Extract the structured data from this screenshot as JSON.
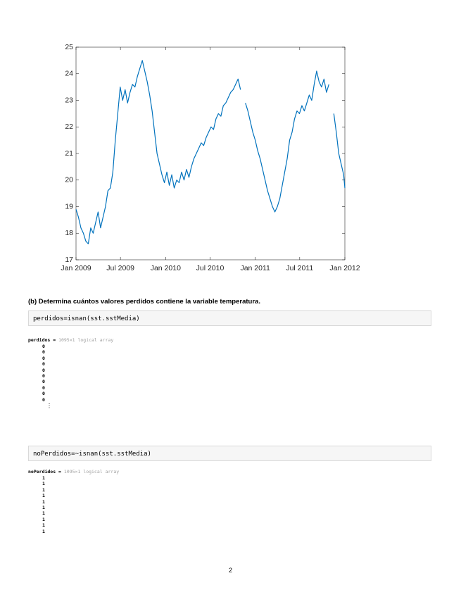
{
  "chart_data": {
    "type": "line",
    "color": "#0072bd",
    "box": true,
    "x": [
      0,
      10,
      20,
      30,
      40,
      50,
      60,
      70,
      80,
      90,
      100,
      110,
      120,
      130,
      140,
      150,
      160,
      170,
      180,
      190,
      200,
      210,
      220,
      230,
      240,
      250,
      260,
      270,
      280,
      290,
      300,
      310,
      320,
      330,
      340,
      350,
      360,
      370,
      380,
      390,
      400,
      410,
      420,
      430,
      440,
      450,
      460,
      470,
      480,
      490,
      500,
      510,
      520,
      530,
      540,
      550,
      560,
      570,
      580,
      590,
      600,
      610,
      620,
      630,
      640,
      650,
      660,
      670,
      680,
      690,
      700,
      710,
      720,
      730,
      740,
      750,
      760,
      770,
      780,
      790,
      800,
      810,
      820,
      830,
      840,
      850,
      860,
      870,
      880,
      890,
      900,
      910,
      920,
      930,
      940,
      950,
      960,
      970,
      980,
      990,
      1000,
      1010,
      1020,
      1030,
      1040,
      1050,
      1060,
      1070,
      1080,
      1090,
      1095
    ],
    "values": [
      18.9,
      18.6,
      18.2,
      18.0,
      17.7,
      17.6,
      18.2,
      18.0,
      18.4,
      18.8,
      18.2,
      18.6,
      19.0,
      19.6,
      19.7,
      20.3,
      21.5,
      22.5,
      23.5,
      23.0,
      23.4,
      22.9,
      23.3,
      23.6,
      23.5,
      23.9,
      24.2,
      24.5,
      24.1,
      23.7,
      23.2,
      22.6,
      21.8,
      21.0,
      20.6,
      20.2,
      19.9,
      20.3,
      19.8,
      20.2,
      19.7,
      20.0,
      19.9,
      20.3,
      20.0,
      20.4,
      20.1,
      20.5,
      20.8,
      21.0,
      21.2,
      21.4,
      21.3,
      21.6,
      21.8,
      22.0,
      21.9,
      22.3,
      22.5,
      22.4,
      22.8,
      22.9,
      23.1,
      23.3,
      23.4,
      23.6,
      23.8,
      23.4,
      null,
      22.9,
      22.6,
      22.2,
      21.8,
      21.5,
      21.1,
      20.8,
      20.4,
      20.0,
      19.6,
      19.3,
      19.0,
      18.8,
      19.0,
      19.3,
      19.8,
      20.3,
      20.8,
      21.5,
      21.8,
      22.3,
      22.6,
      22.5,
      22.8,
      22.6,
      22.9,
      23.2,
      23.0,
      23.6,
      24.1,
      23.7,
      23.5,
      23.8,
      23.3,
      23.6,
      null,
      22.5,
      21.8,
      21.0,
      20.6,
      20.2,
      19.7
    ],
    "xlim": [
      0,
      1095
    ],
    "xticks": [
      {
        "value": 0,
        "label": "Jan 2009"
      },
      {
        "value": 181,
        "label": "Jul 2009"
      },
      {
        "value": 365,
        "label": "Jan 2010"
      },
      {
        "value": 546,
        "label": "Jul 2010"
      },
      {
        "value": 730,
        "label": "Jan 2011"
      },
      {
        "value": 911,
        "label": "Jul 2011"
      },
      {
        "value": 1095,
        "label": "Jan 2012"
      }
    ],
    "ylim": [
      17,
      25
    ],
    "yticks": [
      17,
      18,
      19,
      20,
      21,
      22,
      23,
      24,
      25
    ]
  },
  "section": {
    "heading": "(b) Determina cuántos valores perdidos contiene la variable temperatura.",
    "blocks": [
      {
        "code": "perdidos=isnan(sst.sstMedia)",
        "label": "perdidos =",
        "info": "1095×1 logical array",
        "rows": [
          0,
          0,
          0,
          0,
          0,
          0,
          0,
          0,
          0,
          0
        ],
        "more": "⋮"
      },
      {
        "code": "noPerdidos=~isnan(sst.sstMedia)",
        "label": "noPerdidos =",
        "info": "1095×1 logical array",
        "rows": [
          1,
          1,
          1,
          1,
          1,
          1,
          1,
          1,
          1,
          1
        ]
      }
    ]
  },
  "page_number": "2"
}
